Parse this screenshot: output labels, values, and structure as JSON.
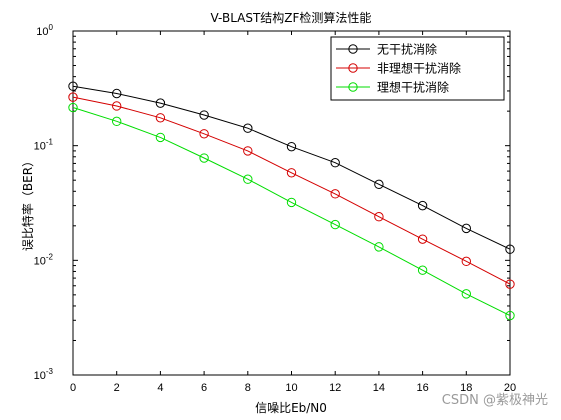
{
  "chart_data": {
    "type": "line",
    "title": "V-BLAST结构ZF检测算法性能",
    "xlabel": "信噪比Eb/N0",
    "ylabel": "误比特率（BER）",
    "x": [
      0,
      2,
      4,
      6,
      8,
      10,
      12,
      14,
      16,
      18,
      20
    ],
    "xlim": [
      0,
      20
    ],
    "ylim": [
      0.001,
      1
    ],
    "yscale": "log",
    "xticks": [
      "0",
      "2",
      "4",
      "6",
      "8",
      "10",
      "12",
      "14",
      "16",
      "18",
      "20"
    ],
    "yticks": [
      {
        "base": "10",
        "exp": "0",
        "value": 1
      },
      {
        "base": "10",
        "exp": "-1",
        "value": 0.1
      },
      {
        "base": "10",
        "exp": "-2",
        "value": 0.01
      },
      {
        "base": "10",
        "exp": "-3",
        "value": 0.001
      }
    ],
    "grid": false,
    "legend_position": "top-right",
    "marker": "circle",
    "series": [
      {
        "name": "无干扰消除",
        "color": "#000000",
        "values": [
          0.33,
          0.285,
          0.235,
          0.185,
          0.142,
          0.098,
          0.071,
          0.046,
          0.03,
          0.019,
          0.0125
        ]
      },
      {
        "name": "非理想干扰消除",
        "color": "#d40000",
        "values": [
          0.265,
          0.222,
          0.175,
          0.127,
          0.09,
          0.058,
          0.038,
          0.024,
          0.0153,
          0.0098,
          0.0062
        ]
      },
      {
        "name": "理想干扰消除",
        "color": "#00dd00",
        "values": [
          0.215,
          0.163,
          0.118,
          0.078,
          0.051,
          0.032,
          0.0205,
          0.0131,
          0.0082,
          0.0051,
          0.0033
        ]
      }
    ]
  },
  "watermark": "CSDN @紫极神光"
}
